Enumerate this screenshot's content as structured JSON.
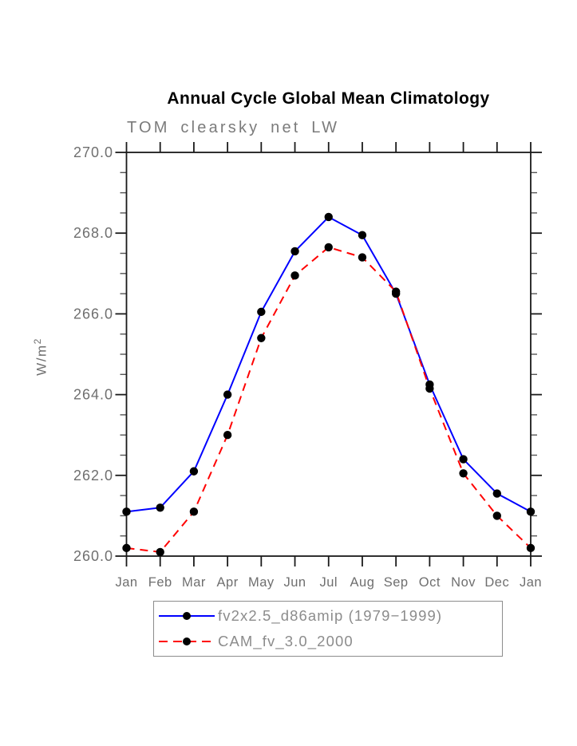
{
  "chart_data": {
    "type": "line",
    "title": "Annual Cycle Global Mean Climatology",
    "subtitle": "TOM clearsky net LW",
    "ylabel": "W/m²",
    "ylabel_base": "W/m",
    "ylabel_exponent": "2",
    "categories": [
      "Jan",
      "Feb",
      "Mar",
      "Apr",
      "May",
      "Jun",
      "Jul",
      "Aug",
      "Sep",
      "Oct",
      "Nov",
      "Dec",
      "Jan"
    ],
    "ylim": [
      260.0,
      270.0
    ],
    "ytick_interval_major": 2.0,
    "ytick_interval_minor": 0.5,
    "yticks": [
      {
        "value": 260.0,
        "label": "260.0"
      },
      {
        "value": 262.0,
        "label": "262.0"
      },
      {
        "value": 264.0,
        "label": "264.0"
      },
      {
        "value": 266.0,
        "label": "266.0"
      },
      {
        "value": 268.0,
        "label": "268.0"
      },
      {
        "value": 270.0,
        "label": "270.0"
      }
    ],
    "grid": false,
    "legend_position": "bottom-boxed",
    "series": [
      {
        "name": "fv2x2.5_d86amip (1979−1999)",
        "color": "#0000ff",
        "line_style": "solid",
        "marker": "filled-circle",
        "marker_color": "#000000",
        "values": [
          261.1,
          261.2,
          262.1,
          264.0,
          266.05,
          267.55,
          268.4,
          267.95,
          266.5,
          264.25,
          262.4,
          261.55,
          261.1
        ]
      },
      {
        "name": "CAM_fv_3.0_2000",
        "color": "#ff0000",
        "line_style": "dashed",
        "marker": "filled-circle",
        "marker_color": "#000000",
        "values": [
          260.2,
          260.1,
          261.1,
          263.0,
          265.4,
          266.95,
          267.65,
          267.4,
          266.55,
          264.15,
          262.05,
          261.0,
          260.2
        ]
      }
    ]
  },
  "colors": {
    "background": "#ffffff",
    "axis": "#1a1a1a",
    "minor_tick": "#555555",
    "tick_label": "#6f6f6f",
    "title": "#000000",
    "subtitle": "#7b7b7b",
    "legend_text": "#8c8c8c",
    "legend_border": "#8c8c8c"
  }
}
